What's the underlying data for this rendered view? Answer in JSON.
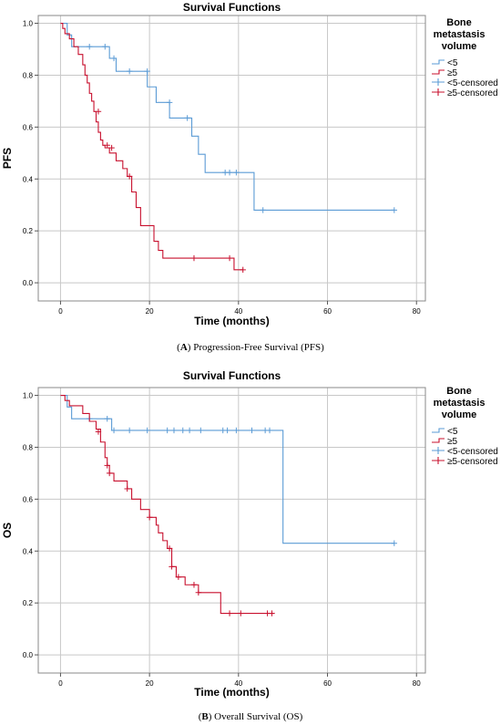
{
  "colors": {
    "lt5": "#5b9bd5",
    "ge5": "#c8102e",
    "grid": "#c8c8c8",
    "frame": "#888888"
  },
  "chart_data": [
    {
      "type": "line",
      "step": true,
      "title": "Survival Functions",
      "xlabel": "Time (months)",
      "ylabel": "PFS",
      "xlim": [
        -5,
        82
      ],
      "ylim": [
        -0.07,
        1.03
      ],
      "xticks": [
        0,
        20,
        40,
        60,
        80
      ],
      "yticks": [
        0.0,
        0.2,
        0.4,
        0.6,
        0.8,
        1.0
      ],
      "grid": "major-x-y",
      "legend_title": "Bone metastasis volume",
      "legend_position": "right",
      "caption": {
        "letter": "A",
        "text": ") Progression-Free Survival (PFS)"
      },
      "series": [
        {
          "name": "<5",
          "color_key": "lt5",
          "x": [
            0,
            1.5,
            2.5,
            11,
            12.5,
            19.5,
            21.5,
            24.5,
            29.5,
            31,
            32.5,
            43.5,
            75
          ],
          "y": [
            1.0,
            0.955,
            0.91,
            0.865,
            0.815,
            0.755,
            0.695,
            0.635,
            0.565,
            0.495,
            0.425,
            0.28,
            0.28
          ],
          "censored_name": "<5-censored",
          "censored": [
            [
              6.5,
              0.91
            ],
            [
              10,
              0.91
            ],
            [
              12,
              0.865
            ],
            [
              15.5,
              0.815
            ],
            [
              19.5,
              0.815
            ],
            [
              24.5,
              0.695
            ],
            [
              28.5,
              0.635
            ],
            [
              37,
              0.425
            ],
            [
              38,
              0.425
            ],
            [
              39.5,
              0.425
            ],
            [
              45.5,
              0.28
            ],
            [
              75,
              0.28
            ]
          ]
        },
        {
          "name": "≥5",
          "color_key": "ge5",
          "x": [
            0,
            0.5,
            1,
            2,
            3,
            4,
            5,
            5.5,
            6,
            6.5,
            7,
            7.5,
            8,
            8.5,
            9,
            9.5,
            10,
            11,
            12.5,
            14,
            15,
            16,
            17,
            18,
            21,
            22,
            23,
            30,
            39,
            40,
            41
          ],
          "y": [
            1.0,
            0.98,
            0.96,
            0.94,
            0.91,
            0.88,
            0.84,
            0.8,
            0.77,
            0.73,
            0.7,
            0.66,
            0.62,
            0.58,
            0.55,
            0.53,
            0.52,
            0.5,
            0.47,
            0.44,
            0.41,
            0.35,
            0.29,
            0.22,
            0.16,
            0.125,
            0.095,
            0.095,
            0.05,
            0.05,
            0.05
          ],
          "censored_name": "≥5-censored",
          "censored": [
            [
              8.5,
              0.66
            ],
            [
              10.5,
              0.53
            ],
            [
              11.5,
              0.52
            ],
            [
              15.5,
              0.41
            ],
            [
              30,
              0.095
            ],
            [
              38,
              0.095
            ],
            [
              41,
              0.05
            ]
          ]
        }
      ]
    },
    {
      "type": "line",
      "step": true,
      "title": "Survival Functions",
      "xlabel": "Time (months)",
      "ylabel": "OS",
      "xlim": [
        -5,
        82
      ],
      "ylim": [
        -0.07,
        1.03
      ],
      "xticks": [
        0,
        20,
        40,
        60,
        80
      ],
      "yticks": [
        0.0,
        0.2,
        0.4,
        0.6,
        0.8,
        1.0
      ],
      "grid": "major-x-y",
      "legend_title": "Bone metastasis volume",
      "legend_position": "right",
      "caption": {
        "letter": "B",
        "text": ") Overall Survival (OS)"
      },
      "series": [
        {
          "name": "<5",
          "color_key": "lt5",
          "x": [
            0,
            1.5,
            2.5,
            11.5,
            50,
            75
          ],
          "y": [
            1.0,
            0.955,
            0.91,
            0.865,
            0.43,
            0.43
          ],
          "censored_name": "<5-censored",
          "censored": [
            [
              6.5,
              0.91
            ],
            [
              10.5,
              0.91
            ],
            [
              12,
              0.865
            ],
            [
              15.5,
              0.865
            ],
            [
              19.5,
              0.865
            ],
            [
              24,
              0.865
            ],
            [
              25.5,
              0.865
            ],
            [
              27.5,
              0.865
            ],
            [
              29,
              0.865
            ],
            [
              31.5,
              0.865
            ],
            [
              36.5,
              0.865
            ],
            [
              37.5,
              0.865
            ],
            [
              39.5,
              0.865
            ],
            [
              43,
              0.865
            ],
            [
              46,
              0.865
            ],
            [
              47,
              0.865
            ],
            [
              75,
              0.43
            ]
          ]
        },
        {
          "name": "≥5",
          "color_key": "ge5",
          "x": [
            0,
            1,
            2,
            5,
            6.5,
            8,
            9,
            10,
            10.5,
            11,
            12,
            15,
            16,
            18,
            20,
            21.5,
            22,
            23,
            24,
            25,
            26,
            28,
            30,
            31,
            36,
            48
          ],
          "y": [
            1.0,
            0.98,
            0.96,
            0.93,
            0.9,
            0.87,
            0.82,
            0.76,
            0.73,
            0.7,
            0.67,
            0.64,
            0.6,
            0.56,
            0.53,
            0.5,
            0.47,
            0.44,
            0.41,
            0.34,
            0.3,
            0.27,
            0.27,
            0.24,
            0.16,
            0.16
          ],
          "censored_name": "≥5-censored",
          "censored": [
            [
              8.5,
              0.86
            ],
            [
              10.5,
              0.73
            ],
            [
              11,
              0.7
            ],
            [
              15,
              0.64
            ],
            [
              20,
              0.53
            ],
            [
              24.5,
              0.41
            ],
            [
              25,
              0.34
            ],
            [
              26.5,
              0.3
            ],
            [
              30,
              0.27
            ],
            [
              31,
              0.24
            ],
            [
              38,
              0.16
            ],
            [
              40.5,
              0.16
            ],
            [
              46.5,
              0.16
            ],
            [
              47.5,
              0.16
            ]
          ]
        }
      ]
    }
  ]
}
